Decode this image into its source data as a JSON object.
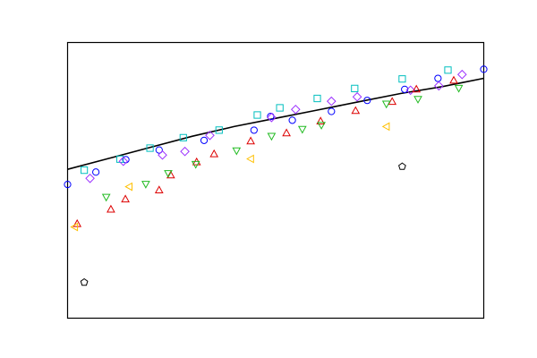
{
  "chart_data": {
    "type": "scatter",
    "title": "",
    "xlabel": "",
    "ylabel": "",
    "xlim": [
      0,
      1
    ],
    "ylim": [
      0,
      1
    ],
    "grid": false,
    "legend": "none",
    "curve": {
      "color": "#000000",
      "points": [
        [
          0.0,
          0.54
        ],
        [
          0.1,
          0.58
        ],
        [
          0.2,
          0.62
        ],
        [
          0.3,
          0.66
        ],
        [
          0.4,
          0.695
        ],
        [
          0.5,
          0.725
        ],
        [
          0.6,
          0.755
        ],
        [
          0.7,
          0.785
        ],
        [
          0.8,
          0.815
        ],
        [
          0.9,
          0.84
        ],
        [
          1.0,
          0.87
        ]
      ]
    },
    "series": [
      {
        "marker": "circle",
        "color": "#0000ff",
        "points": [
          [
            0.0,
            0.485
          ],
          [
            0.068,
            0.53
          ],
          [
            0.14,
            0.575
          ],
          [
            0.22,
            0.61
          ],
          [
            0.328,
            0.645
          ],
          [
            0.448,
            0.682
          ],
          [
            0.488,
            0.732
          ],
          [
            0.54,
            0.718
          ],
          [
            0.634,
            0.75
          ],
          [
            0.72,
            0.79
          ],
          [
            0.81,
            0.83
          ],
          [
            0.89,
            0.87
          ],
          [
            1.0,
            0.903
          ]
        ]
      },
      {
        "marker": "square",
        "color": "#00bfbf",
        "points": [
          [
            0.04,
            0.537
          ],
          [
            0.126,
            0.577
          ],
          [
            0.198,
            0.617
          ],
          [
            0.278,
            0.655
          ],
          [
            0.364,
            0.682
          ],
          [
            0.456,
            0.737
          ],
          [
            0.51,
            0.763
          ],
          [
            0.6,
            0.797
          ],
          [
            0.69,
            0.833
          ],
          [
            0.804,
            0.868
          ],
          [
            0.914,
            0.9
          ]
        ]
      },
      {
        "marker": "diamond",
        "color": "#9b30ff",
        "points": [
          [
            0.054,
            0.507
          ],
          [
            0.134,
            0.569
          ],
          [
            0.228,
            0.592
          ],
          [
            0.282,
            0.605
          ],
          [
            0.342,
            0.663
          ],
          [
            0.49,
            0.728
          ],
          [
            0.548,
            0.757
          ],
          [
            0.634,
            0.787
          ],
          [
            0.696,
            0.803
          ],
          [
            0.824,
            0.827
          ],
          [
            0.892,
            0.843
          ],
          [
            0.948,
            0.884
          ]
        ]
      },
      {
        "marker": "triangle-up",
        "color": "#dd0000",
        "points": [
          [
            0.023,
            0.343
          ],
          [
            0.104,
            0.395
          ],
          [
            0.139,
            0.432
          ],
          [
            0.22,
            0.465
          ],
          [
            0.248,
            0.519
          ],
          [
            0.31,
            0.567
          ],
          [
            0.352,
            0.596
          ],
          [
            0.44,
            0.643
          ],
          [
            0.526,
            0.672
          ],
          [
            0.608,
            0.715
          ],
          [
            0.692,
            0.753
          ],
          [
            0.78,
            0.786
          ],
          [
            0.838,
            0.831
          ],
          [
            0.928,
            0.863
          ]
        ]
      },
      {
        "marker": "triangle-down",
        "color": "#22bb22",
        "points": [
          [
            0.093,
            0.439
          ],
          [
            0.188,
            0.486
          ],
          [
            0.242,
            0.525
          ],
          [
            0.308,
            0.558
          ],
          [
            0.406,
            0.607
          ],
          [
            0.49,
            0.66
          ],
          [
            0.564,
            0.685
          ],
          [
            0.61,
            0.7
          ],
          [
            0.766,
            0.777
          ],
          [
            0.842,
            0.794
          ],
          [
            0.94,
            0.834
          ]
        ]
      },
      {
        "marker": "triangle-left",
        "color": "#ffc000",
        "points": [
          [
            0.017,
            0.331
          ],
          [
            0.148,
            0.477
          ],
          [
            0.44,
            0.578
          ],
          [
            0.766,
            0.695
          ]
        ]
      },
      {
        "marker": "pentagon",
        "color": "#000000",
        "points": [
          [
            0.04,
            0.13
          ],
          [
            0.804,
            0.55
          ]
        ]
      }
    ]
  }
}
